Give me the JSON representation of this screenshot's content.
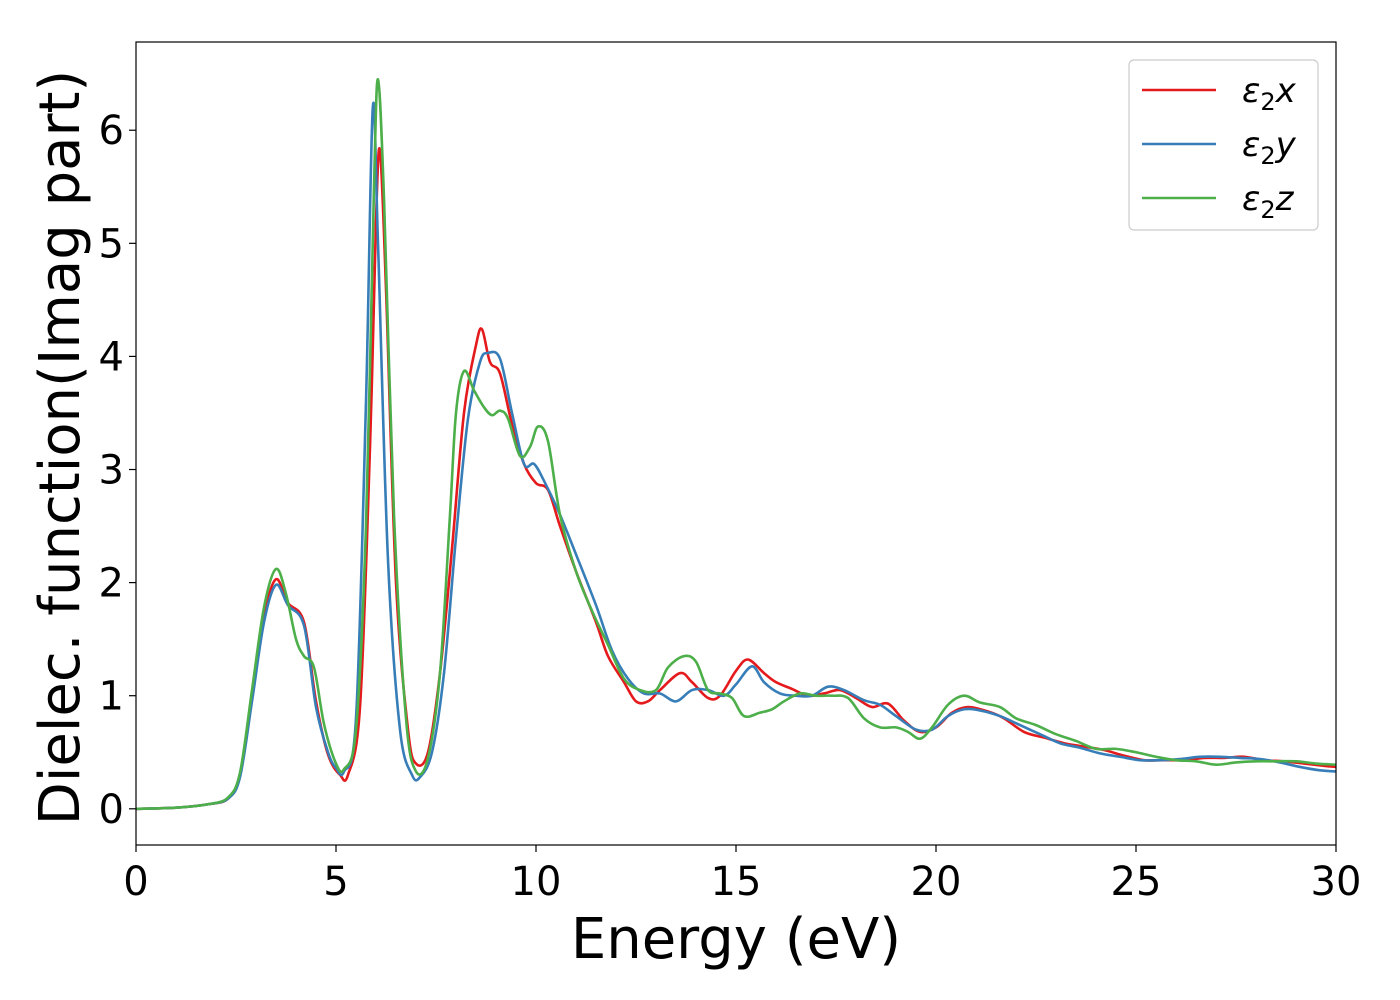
{
  "chart_data": {
    "type": "line",
    "title": "",
    "xlabel": "Energy (eV)",
    "ylabel": "Dielec. function(Imag part)",
    "xlim": [
      0,
      30
    ],
    "ylim": [
      -0.32,
      6.78
    ],
    "xticks": [
      0,
      5,
      10,
      15,
      20,
      25,
      30
    ],
    "yticks": [
      0,
      1,
      2,
      3,
      4,
      5,
      6
    ],
    "grid": false,
    "legend_position": "top-right",
    "series": [
      {
        "name": "ε2x",
        "label_main": "ε",
        "label_sub": "2",
        "label_suffix": "x",
        "color": "#e41a1c",
        "points": [
          [
            0,
            0
          ],
          [
            1,
            0.01
          ],
          [
            1.8,
            0.04
          ],
          [
            2.3,
            0.09
          ],
          [
            2.6,
            0.3
          ],
          [
            2.9,
            1.0
          ],
          [
            3.2,
            1.7
          ],
          [
            3.5,
            2.03
          ],
          [
            3.8,
            1.82
          ],
          [
            4.2,
            1.65
          ],
          [
            4.5,
            0.95
          ],
          [
            4.8,
            0.48
          ],
          [
            5.1,
            0.3
          ],
          [
            5.3,
            0.3
          ],
          [
            5.6,
            0.9
          ],
          [
            5.85,
            3.2
          ],
          [
            6.0,
            5.2
          ],
          [
            6.1,
            5.82
          ],
          [
            6.25,
            4.6
          ],
          [
            6.5,
            2.0
          ],
          [
            6.8,
            0.7
          ],
          [
            7.0,
            0.4
          ],
          [
            7.3,
            0.5
          ],
          [
            7.6,
            1.2
          ],
          [
            7.9,
            2.3
          ],
          [
            8.2,
            3.5
          ],
          [
            8.5,
            4.1
          ],
          [
            8.65,
            4.24
          ],
          [
            8.85,
            3.95
          ],
          [
            9.1,
            3.85
          ],
          [
            9.4,
            3.4
          ],
          [
            9.7,
            3.05
          ],
          [
            10.0,
            2.88
          ],
          [
            10.3,
            2.82
          ],
          [
            10.6,
            2.5
          ],
          [
            11.0,
            2.1
          ],
          [
            11.5,
            1.65
          ],
          [
            11.8,
            1.35
          ],
          [
            12.2,
            1.12
          ],
          [
            12.5,
            0.95
          ],
          [
            12.8,
            0.95
          ],
          [
            13.1,
            1.05
          ],
          [
            13.6,
            1.2
          ],
          [
            13.9,
            1.12
          ],
          [
            14.3,
            0.98
          ],
          [
            14.6,
            1.0
          ],
          [
            15.0,
            1.22
          ],
          [
            15.3,
            1.32
          ],
          [
            15.7,
            1.2
          ],
          [
            16.0,
            1.12
          ],
          [
            16.4,
            1.06
          ],
          [
            16.8,
            1.0
          ],
          [
            17.2,
            1.02
          ],
          [
            17.6,
            1.05
          ],
          [
            18.0,
            0.98
          ],
          [
            18.4,
            0.9
          ],
          [
            18.8,
            0.93
          ],
          [
            19.2,
            0.78
          ],
          [
            19.6,
            0.68
          ],
          [
            20.0,
            0.72
          ],
          [
            20.4,
            0.85
          ],
          [
            20.8,
            0.9
          ],
          [
            21.3,
            0.86
          ],
          [
            21.7,
            0.8
          ],
          [
            22.2,
            0.68
          ],
          [
            22.7,
            0.63
          ],
          [
            23.2,
            0.58
          ],
          [
            23.7,
            0.55
          ],
          [
            24.2,
            0.52
          ],
          [
            24.7,
            0.47
          ],
          [
            25.2,
            0.43
          ],
          [
            25.7,
            0.43
          ],
          [
            26.2,
            0.43
          ],
          [
            26.7,
            0.45
          ],
          [
            27.2,
            0.45
          ],
          [
            27.7,
            0.46
          ],
          [
            28.2,
            0.43
          ],
          [
            28.7,
            0.42
          ],
          [
            29.2,
            0.4
          ],
          [
            29.7,
            0.38
          ],
          [
            30,
            0.37
          ]
        ]
      },
      {
        "name": "ε2y",
        "label_main": "ε",
        "label_sub": "2",
        "label_suffix": "y",
        "color": "#377eb8",
        "points": [
          [
            0,
            0
          ],
          [
            1,
            0.01
          ],
          [
            1.8,
            0.04
          ],
          [
            2.3,
            0.09
          ],
          [
            2.6,
            0.28
          ],
          [
            2.9,
            0.95
          ],
          [
            3.2,
            1.65
          ],
          [
            3.5,
            1.98
          ],
          [
            3.8,
            1.8
          ],
          [
            4.2,
            1.62
          ],
          [
            4.5,
            0.9
          ],
          [
            4.8,
            0.5
          ],
          [
            5.0,
            0.36
          ],
          [
            5.2,
            0.33
          ],
          [
            5.5,
            0.8
          ],
          [
            5.75,
            3.6
          ],
          [
            5.92,
            6.2
          ],
          [
            6.05,
            5.0
          ],
          [
            6.3,
            2.2
          ],
          [
            6.6,
            0.7
          ],
          [
            6.9,
            0.3
          ],
          [
            7.1,
            0.28
          ],
          [
            7.4,
            0.5
          ],
          [
            7.7,
            1.2
          ],
          [
            8.0,
            2.4
          ],
          [
            8.3,
            3.45
          ],
          [
            8.6,
            3.95
          ],
          [
            8.8,
            4.03
          ],
          [
            9.1,
            3.98
          ],
          [
            9.4,
            3.5
          ],
          [
            9.7,
            3.05
          ],
          [
            9.95,
            3.05
          ],
          [
            10.2,
            2.9
          ],
          [
            10.6,
            2.6
          ],
          [
            11.0,
            2.25
          ],
          [
            11.5,
            1.8
          ],
          [
            11.9,
            1.4
          ],
          [
            12.3,
            1.15
          ],
          [
            12.7,
            1.02
          ],
          [
            13.1,
            1.02
          ],
          [
            13.5,
            0.95
          ],
          [
            13.9,
            1.05
          ],
          [
            14.3,
            1.05
          ],
          [
            14.7,
            1.0
          ],
          [
            15.0,
            1.1
          ],
          [
            15.4,
            1.26
          ],
          [
            15.7,
            1.12
          ],
          [
            16.1,
            1.02
          ],
          [
            16.5,
            1.0
          ],
          [
            16.9,
            1.0
          ],
          [
            17.3,
            1.08
          ],
          [
            17.7,
            1.05
          ],
          [
            18.2,
            0.96
          ],
          [
            18.6,
            0.92
          ],
          [
            19.0,
            0.82
          ],
          [
            19.5,
            0.7
          ],
          [
            19.9,
            0.7
          ],
          [
            20.3,
            0.82
          ],
          [
            20.7,
            0.88
          ],
          [
            21.1,
            0.87
          ],
          [
            21.6,
            0.82
          ],
          [
            22.1,
            0.74
          ],
          [
            22.6,
            0.66
          ],
          [
            23.1,
            0.58
          ],
          [
            23.6,
            0.54
          ],
          [
            24.1,
            0.49
          ],
          [
            24.6,
            0.46
          ],
          [
            25.1,
            0.43
          ],
          [
            25.6,
            0.43
          ],
          [
            26.1,
            0.44
          ],
          [
            26.6,
            0.46
          ],
          [
            27.1,
            0.46
          ],
          [
            27.6,
            0.45
          ],
          [
            28.1,
            0.44
          ],
          [
            28.6,
            0.41
          ],
          [
            29.1,
            0.37
          ],
          [
            29.6,
            0.34
          ],
          [
            30,
            0.33
          ]
        ]
      },
      {
        "name": "ε2z",
        "label_main": "ε",
        "label_sub": "2",
        "label_suffix": "z",
        "color": "#4daf4a",
        "points": [
          [
            0,
            0
          ],
          [
            1,
            0.01
          ],
          [
            1.8,
            0.04
          ],
          [
            2.3,
            0.1
          ],
          [
            2.6,
            0.32
          ],
          [
            2.9,
            1.05
          ],
          [
            3.2,
            1.78
          ],
          [
            3.5,
            2.12
          ],
          [
            3.75,
            1.9
          ],
          [
            4.0,
            1.5
          ],
          [
            4.2,
            1.35
          ],
          [
            4.45,
            1.25
          ],
          [
            4.7,
            0.75
          ],
          [
            5.0,
            0.4
          ],
          [
            5.2,
            0.35
          ],
          [
            5.5,
            0.7
          ],
          [
            5.75,
            2.5
          ],
          [
            5.95,
            5.5
          ],
          [
            6.05,
            6.45
          ],
          [
            6.2,
            5.4
          ],
          [
            6.45,
            2.6
          ],
          [
            6.75,
            0.8
          ],
          [
            7.0,
            0.33
          ],
          [
            7.3,
            0.45
          ],
          [
            7.6,
            1.2
          ],
          [
            7.85,
            2.6
          ],
          [
            8.0,
            3.5
          ],
          [
            8.2,
            3.87
          ],
          [
            8.45,
            3.7
          ],
          [
            8.7,
            3.55
          ],
          [
            8.9,
            3.48
          ],
          [
            9.1,
            3.52
          ],
          [
            9.3,
            3.45
          ],
          [
            9.6,
            3.12
          ],
          [
            9.85,
            3.2
          ],
          [
            10.05,
            3.38
          ],
          [
            10.3,
            3.25
          ],
          [
            10.6,
            2.6
          ],
          [
            11.0,
            2.1
          ],
          [
            11.4,
            1.75
          ],
          [
            11.8,
            1.45
          ],
          [
            12.2,
            1.15
          ],
          [
            12.6,
            1.05
          ],
          [
            13.0,
            1.05
          ],
          [
            13.3,
            1.25
          ],
          [
            13.7,
            1.35
          ],
          [
            14.0,
            1.3
          ],
          [
            14.3,
            1.05
          ],
          [
            14.6,
            1.02
          ],
          [
            14.9,
            0.98
          ],
          [
            15.2,
            0.82
          ],
          [
            15.6,
            0.85
          ],
          [
            15.9,
            0.88
          ],
          [
            16.2,
            0.95
          ],
          [
            16.6,
            1.02
          ],
          [
            17.0,
            1.0
          ],
          [
            17.4,
            1.0
          ],
          [
            17.8,
            0.98
          ],
          [
            18.2,
            0.8
          ],
          [
            18.6,
            0.72
          ],
          [
            19.0,
            0.72
          ],
          [
            19.3,
            0.68
          ],
          [
            19.6,
            0.62
          ],
          [
            19.9,
            0.72
          ],
          [
            20.3,
            0.92
          ],
          [
            20.7,
            1.0
          ],
          [
            21.1,
            0.94
          ],
          [
            21.6,
            0.9
          ],
          [
            22.0,
            0.8
          ],
          [
            22.5,
            0.74
          ],
          [
            23.0,
            0.66
          ],
          [
            23.5,
            0.6
          ],
          [
            24.0,
            0.53
          ],
          [
            24.5,
            0.53
          ],
          [
            25.0,
            0.5
          ],
          [
            25.5,
            0.46
          ],
          [
            26.0,
            0.43
          ],
          [
            26.5,
            0.42
          ],
          [
            27.0,
            0.39
          ],
          [
            27.5,
            0.41
          ],
          [
            28.0,
            0.42
          ],
          [
            28.5,
            0.42
          ],
          [
            29.0,
            0.42
          ],
          [
            29.5,
            0.4
          ],
          [
            30,
            0.39
          ]
        ]
      }
    ]
  }
}
